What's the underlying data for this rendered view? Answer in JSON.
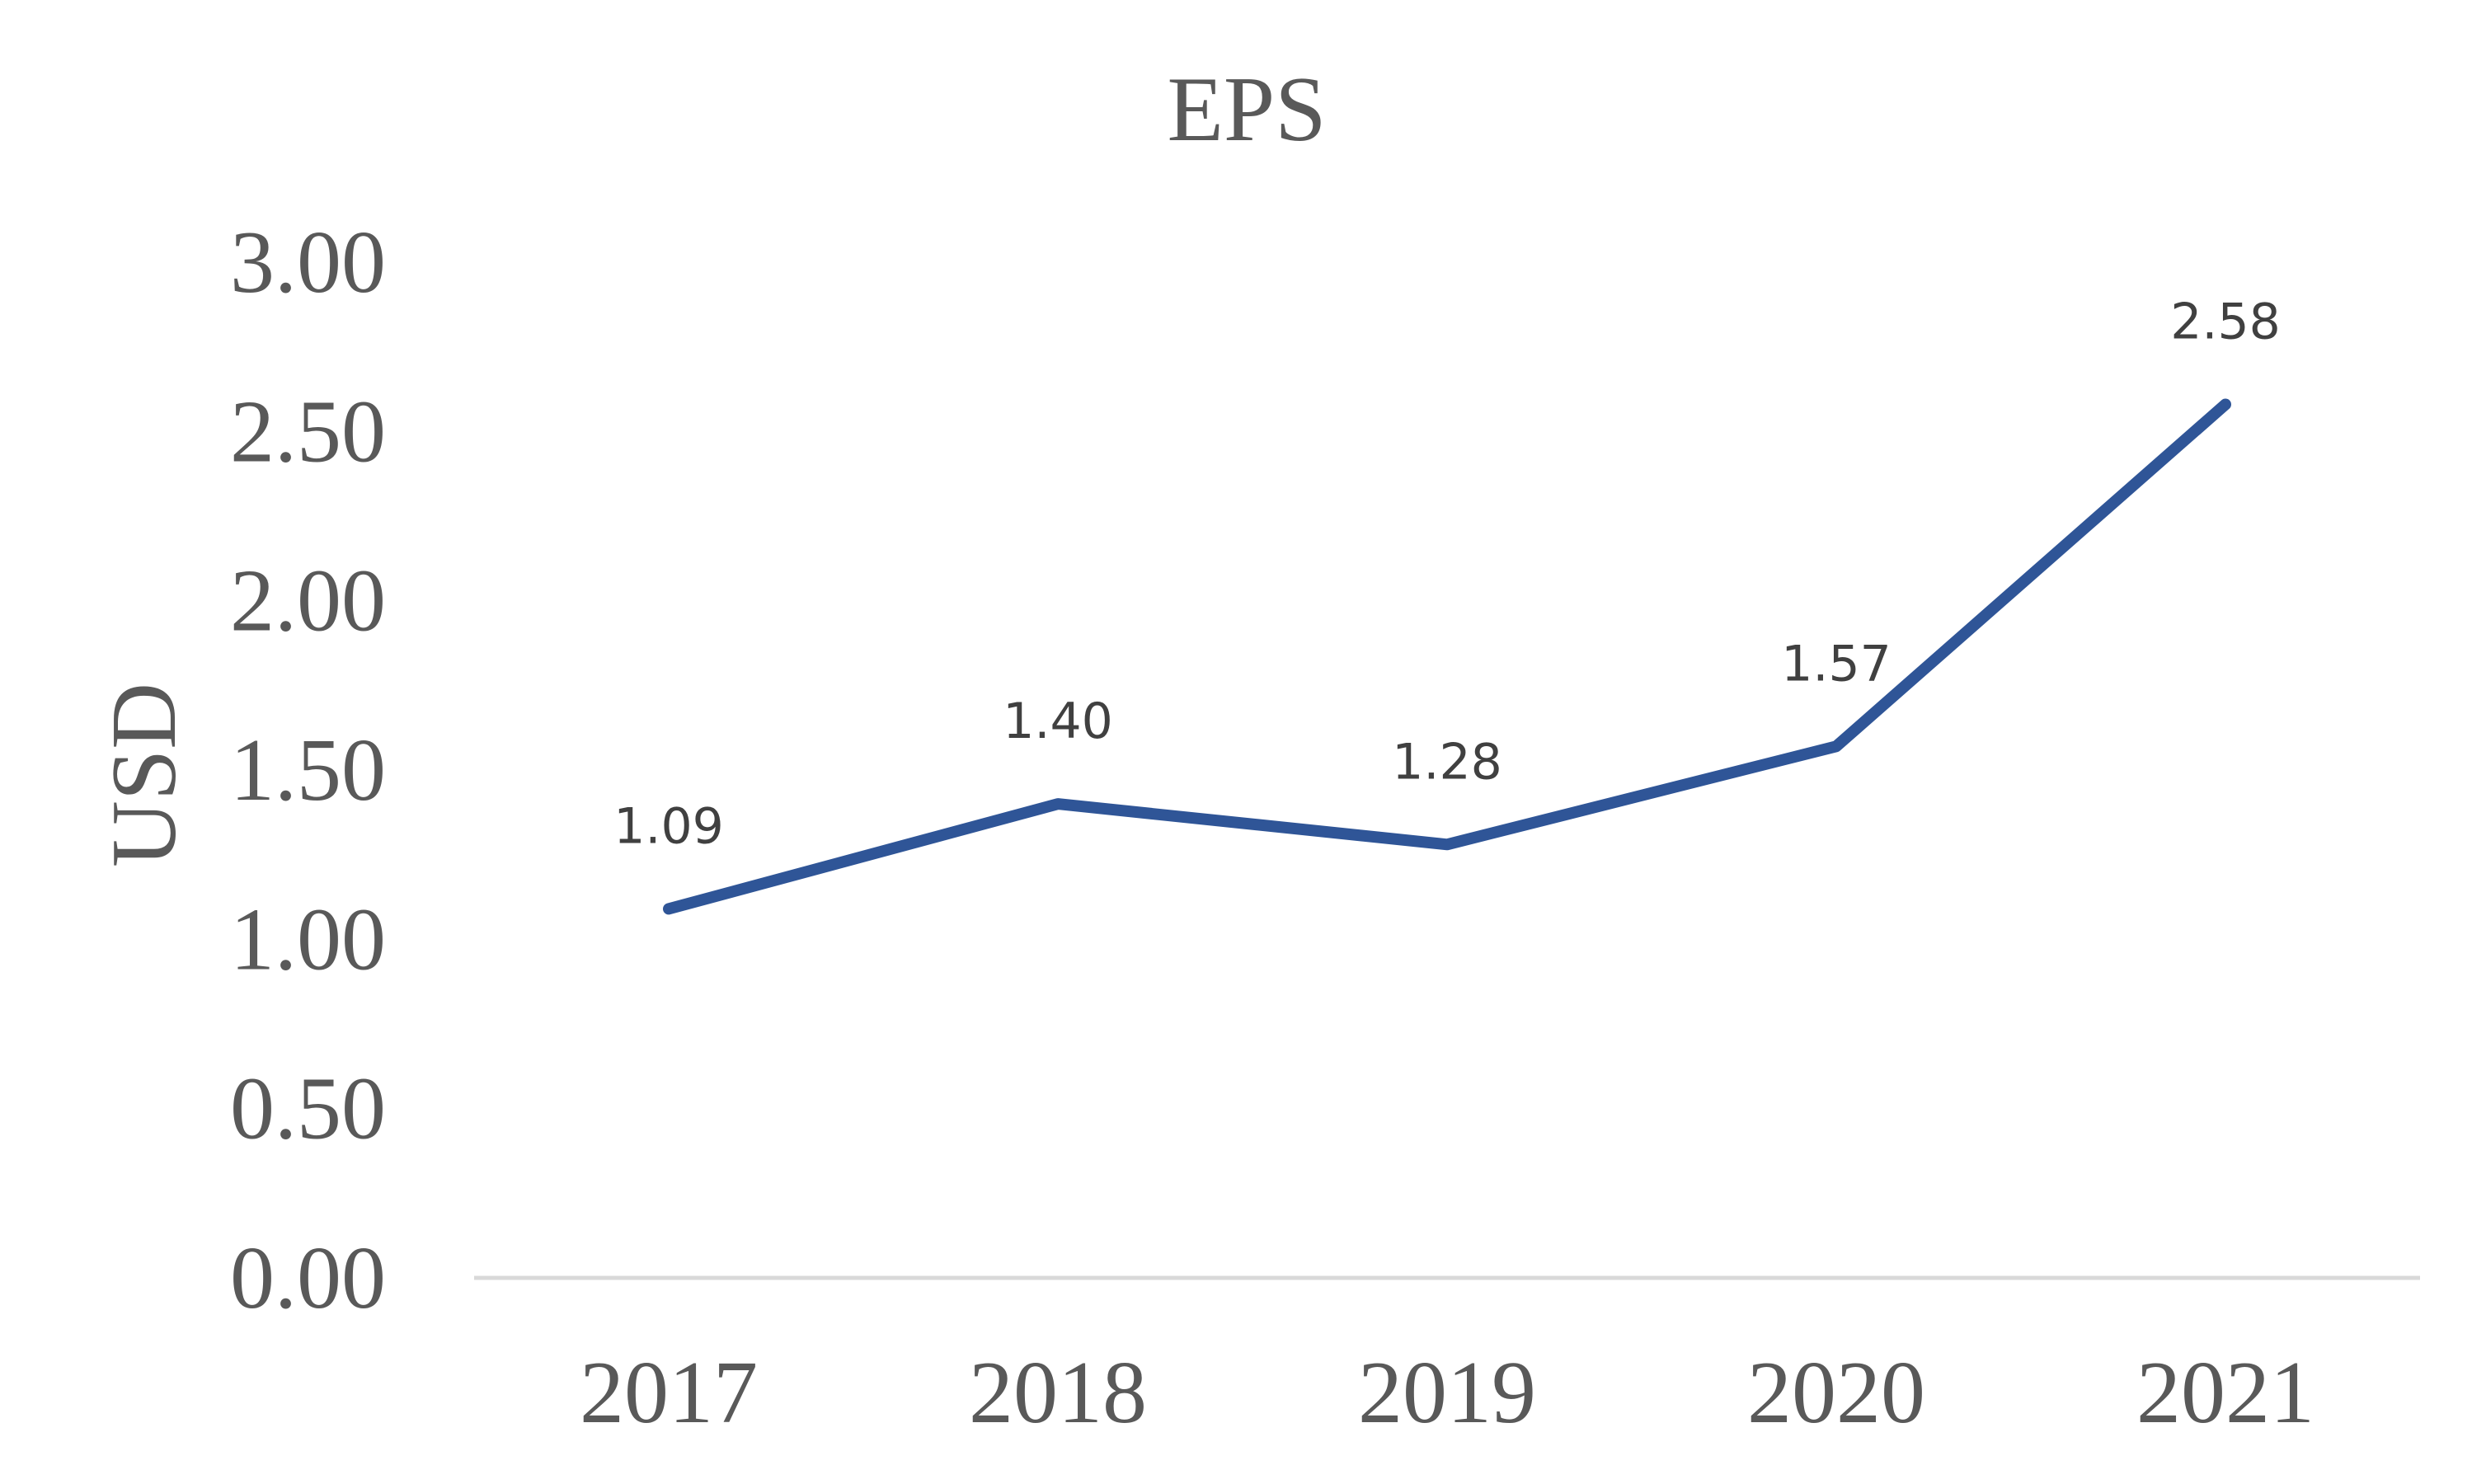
{
  "chart_data": {
    "type": "line",
    "title": "EPS",
    "xlabel": "",
    "ylabel": "USD",
    "categories": [
      "2017",
      "2018",
      "2019",
      "2020",
      "2021"
    ],
    "series": [
      {
        "values": [
          1.09,
          1.4,
          1.28,
          1.57,
          2.58
        ],
        "data_labels": [
          "1.09",
          "1.40",
          "1.28",
          "1.57",
          "2.58"
        ],
        "color": "#2F5597"
      }
    ],
    "ylim": [
      0,
      3
    ],
    "yticks": [
      "0.00",
      "0.50",
      "1.00",
      "1.50",
      "2.00",
      "2.50",
      "3.00"
    ],
    "grid": false,
    "legend": "none",
    "axis_color": "#D9D9D9"
  }
}
